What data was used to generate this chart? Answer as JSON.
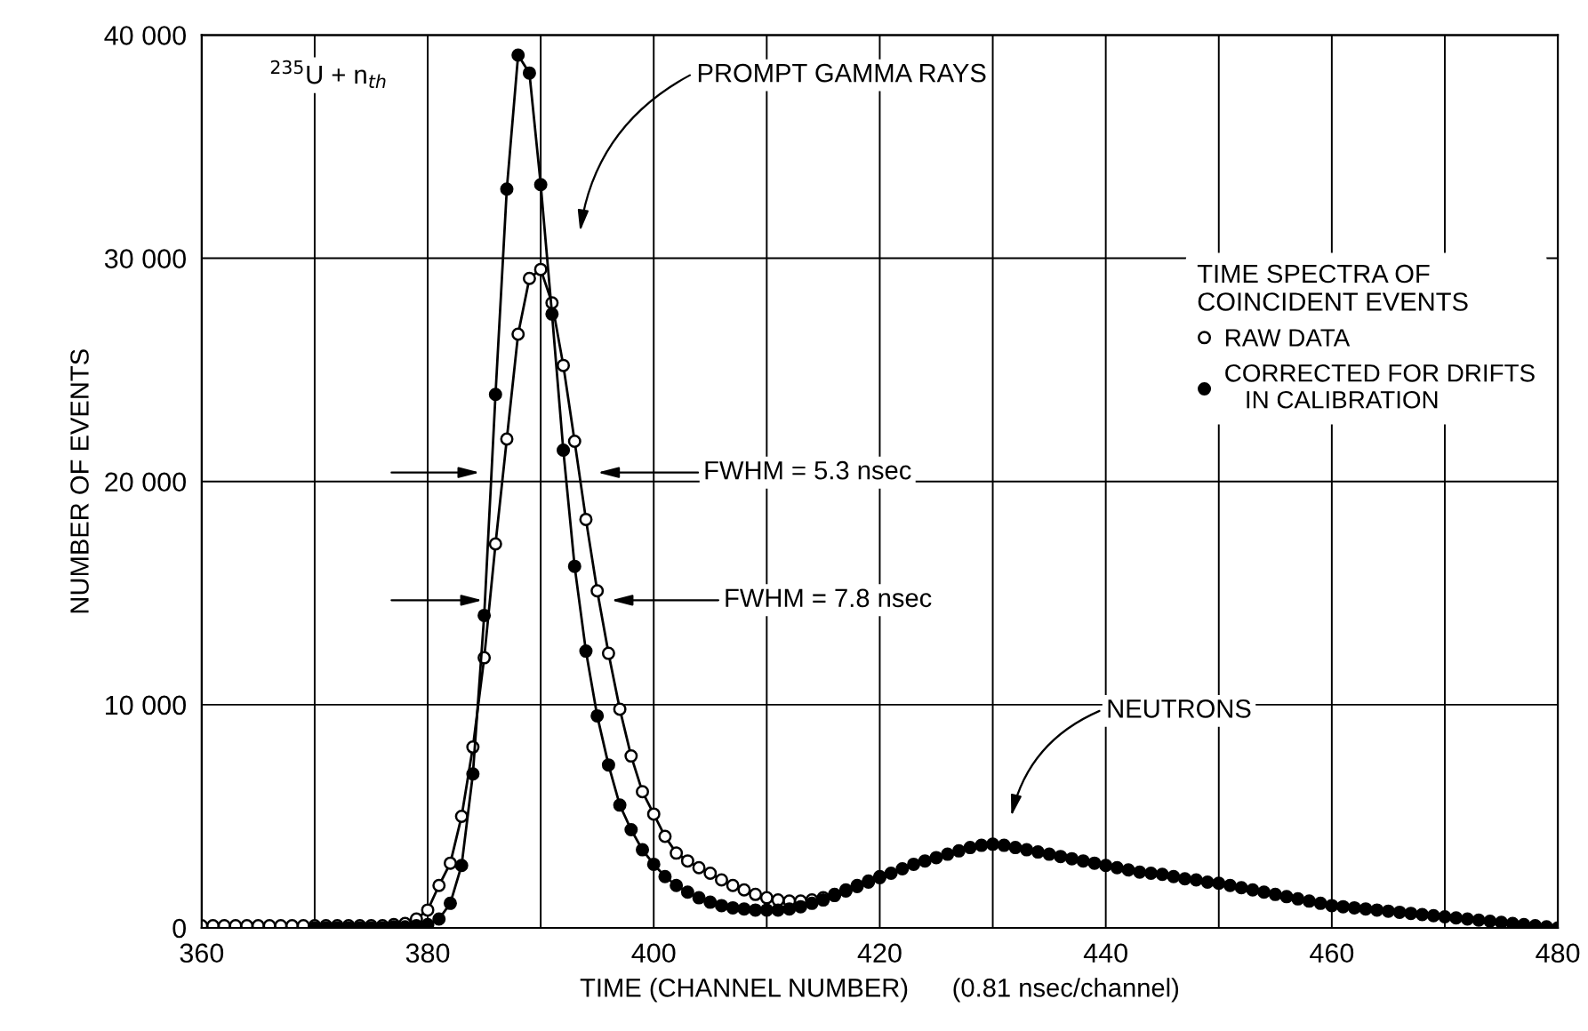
{
  "chart_data": {
    "type": "line",
    "xlabel": "TIME (CHANNEL NUMBER)      (0.81 nsec/channel)",
    "ylabel": "NUMBER OF EVENTS",
    "legend_title": "TIME SPECTRA OF\nCOINCIDENT EVENTS",
    "legend": "right",
    "marker": "circle",
    "line_style": "solid",
    "grid": true,
    "xlim": [
      360,
      480
    ],
    "ylim": [
      0,
      40000
    ],
    "xticks": [
      360,
      {
        "value": 370,
        "label": null
      },
      380,
      {
        "value": 390,
        "label": null
      },
      400,
      {
        "value": 410,
        "label": null
      },
      420,
      {
        "value": 430,
        "label": null
      },
      440,
      {
        "value": 450,
        "label": null
      },
      460,
      {
        "value": 470,
        "label": null
      },
      480
    ],
    "yticks": [
      {
        "value": 0,
        "label": "0"
      },
      {
        "value": 10000,
        "label": "10 000"
      },
      {
        "value": 20000,
        "label": "20 000"
      },
      {
        "value": 30000,
        "label": "30 000"
      },
      {
        "value": 40000,
        "label": "40 000"
      }
    ],
    "series": [
      {
        "name": "RAW DATA",
        "color": "#000000",
        "x": [
          360,
          361,
          362,
          363,
          364,
          365,
          366,
          367,
          368,
          369,
          370,
          371,
          372,
          373,
          374,
          375,
          376,
          377,
          378,
          379,
          380,
          381,
          382,
          383,
          384,
          385,
          386,
          387,
          388,
          389,
          390,
          391,
          392,
          393,
          394,
          395,
          396,
          397,
          398,
          399,
          400,
          401,
          402,
          403,
          404,
          405,
          406,
          407,
          408,
          409,
          410,
          411,
          412,
          413,
          414,
          415,
          416,
          417,
          418,
          419,
          420
        ],
        "values": [
          100,
          100,
          100,
          100,
          100,
          100,
          100,
          100,
          100,
          100,
          100,
          100,
          100,
          100,
          100,
          100,
          100,
          150,
          200,
          400,
          800,
          1900,
          2900,
          5000,
          8100,
          12100,
          17200,
          21900,
          26600,
          29100,
          29500,
          28000,
          25200,
          21800,
          18300,
          15100,
          12300,
          9800,
          7700,
          6100,
          5100,
          4100,
          3350,
          3000,
          2700,
          2450,
          2150,
          1900,
          1700,
          1500,
          1350,
          1250,
          1200,
          1200,
          1250,
          1350,
          1500,
          1700,
          1900,
          2100,
          2300
        ]
      },
      {
        "name": "CORRECTED FOR DRIFTS\n   IN CALIBRATION",
        "color": "#000000",
        "x": [
          370,
          371,
          372,
          373,
          374,
          375,
          376,
          377,
          378,
          379,
          380,
          381,
          382,
          383,
          384,
          385,
          386,
          387,
          388,
          389,
          390,
          391,
          392,
          393,
          394,
          395,
          396,
          397,
          398,
          399,
          400,
          401,
          402,
          403,
          404,
          405,
          406,
          407,
          408,
          409,
          410,
          411,
          412,
          413,
          414,
          415,
          416,
          417,
          418,
          419,
          420,
          421,
          422,
          423,
          424,
          425,
          426,
          427,
          428,
          429,
          430,
          431,
          432,
          433,
          434,
          435,
          436,
          437,
          438,
          439,
          440,
          441,
          442,
          443,
          444,
          445,
          446,
          447,
          448,
          449,
          450,
          451,
          452,
          453,
          454,
          455,
          456,
          457,
          458,
          459,
          460,
          461,
          462,
          463,
          464,
          465,
          466,
          467,
          468,
          469,
          470,
          471,
          472,
          473,
          474,
          475,
          476,
          477,
          478,
          479,
          480
        ],
        "values": [
          0,
          0,
          0,
          0,
          0,
          0,
          0,
          50,
          50,
          100,
          150,
          400,
          1100,
          2800,
          6900,
          14000,
          23900,
          33100,
          39100,
          38300,
          33300,
          27500,
          21400,
          16200,
          12400,
          9500,
          7300,
          5500,
          4400,
          3500,
          2850,
          2300,
          1900,
          1600,
          1350,
          1150,
          1000,
          900,
          850,
          800,
          800,
          800,
          850,
          950,
          1100,
          1250,
          1450,
          1650,
          1850,
          2050,
          2250,
          2450,
          2650,
          2850,
          3000,
          3150,
          3300,
          3450,
          3600,
          3700,
          3750,
          3700,
          3600,
          3500,
          3400,
          3300,
          3200,
          3100,
          3000,
          2900,
          2800,
          2700,
          2600,
          2500,
          2450,
          2400,
          2300,
          2200,
          2150,
          2050,
          2000,
          1900,
          1800,
          1700,
          1600,
          1500,
          1400,
          1300,
          1200,
          1100,
          1000,
          950,
          900,
          850,
          800,
          750,
          700,
          650,
          600,
          550,
          500,
          450,
          400,
          350,
          300,
          250,
          200,
          150,
          100,
          50,
          0
        ]
      }
    ],
    "annotations": [
      "$^{235}$U + n$_{th}$",
      "PROMPT GAMMA RAYS",
      "FWHM = 5.3 nsec",
      "FWHM = 7.8 nsec",
      "NEUTRONS"
    ]
  }
}
